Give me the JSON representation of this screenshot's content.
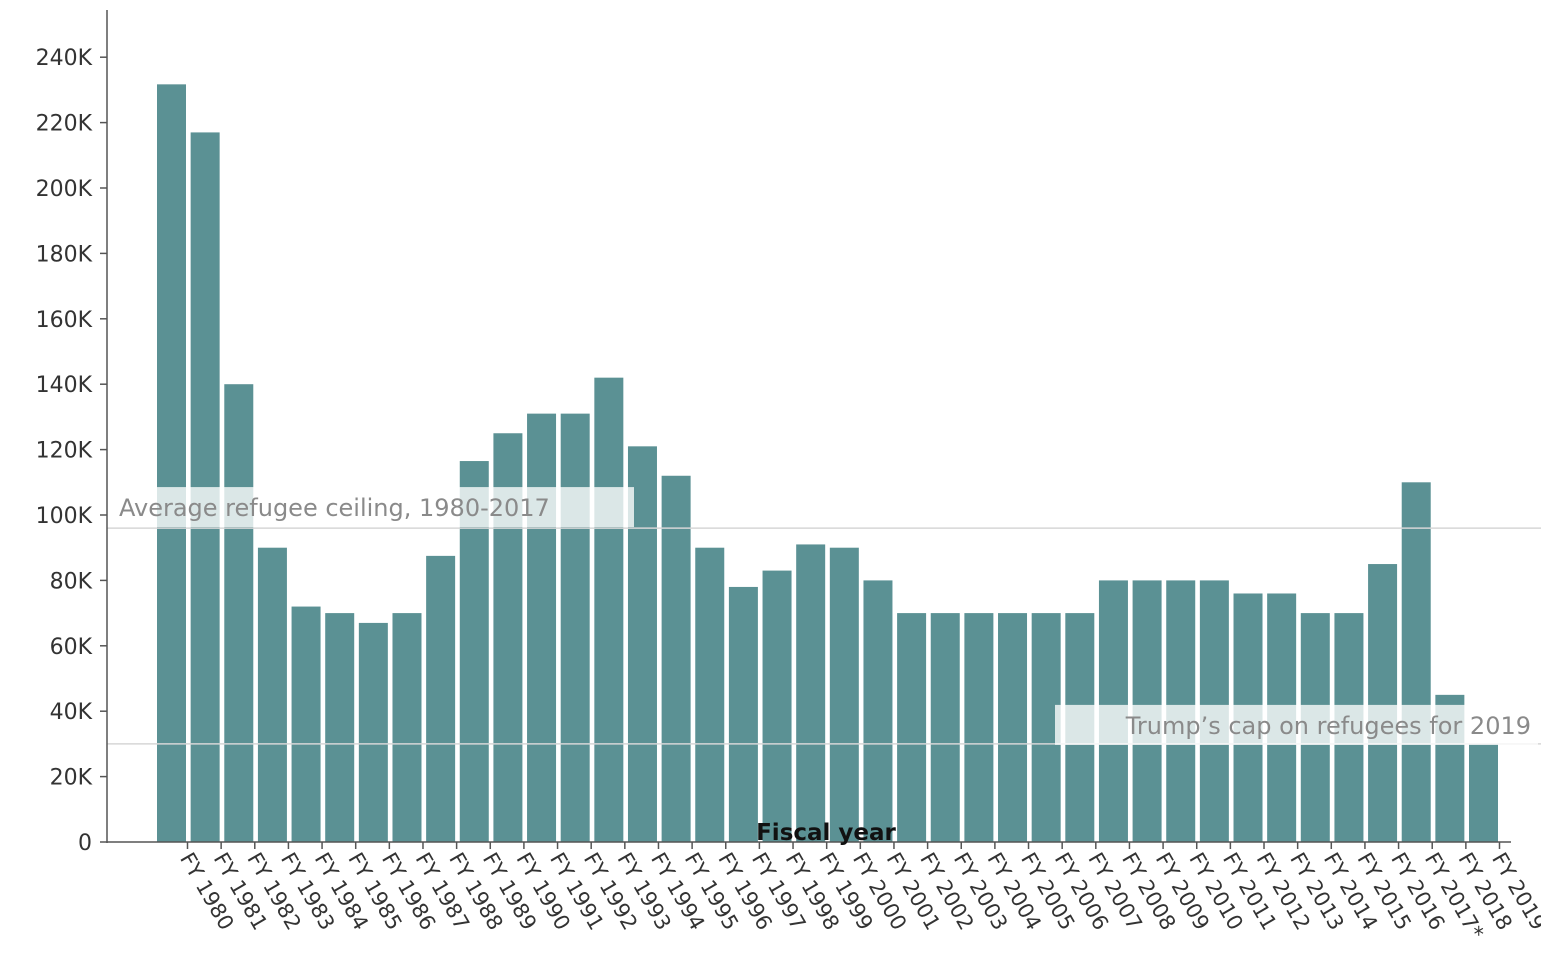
{
  "chart_data": {
    "type": "bar",
    "xlabel": "Fiscal year",
    "ylabel": "",
    "ylim": [
      0,
      255000
    ],
    "y_ticks": [
      0,
      20000,
      40000,
      60000,
      80000,
      100000,
      120000,
      140000,
      160000,
      180000,
      200000,
      220000,
      240000
    ],
    "y_tick_labels": [
      "0",
      "20K",
      "40K",
      "60K",
      "80K",
      "100K",
      "120K",
      "140K",
      "160K",
      "180K",
      "200K",
      "220K",
      "240K"
    ],
    "categories": [
      "FY 1980",
      "FY 1981",
      "FY 1982",
      "FY 1983",
      "FY 1984",
      "FY 1985",
      "FY 1986",
      "FY 1987",
      "FY 1988",
      "FY 1989",
      "FY 1990",
      "FY 1991",
      "FY 1992",
      "FY 1993",
      "FY 1994",
      "FY 1995",
      "FY 1996",
      "FY 1997",
      "FY 1998",
      "FY 1999",
      "FY 2000",
      "FY 2001",
      "FY 2002",
      "FY 2003",
      "FY 2004",
      "FY 2005",
      "FY 2006",
      "FY 2007",
      "FY 2008",
      "FY 2009",
      "FY 2010",
      "FY 2011",
      "FY 2012",
      "FY 2013",
      "FY 2014",
      "FY 2015",
      "FY 2016",
      "FY 2017*",
      "FY 2018",
      "FY 2019"
    ],
    "values": [
      231700,
      217000,
      140000,
      90000,
      72000,
      70000,
      67000,
      70000,
      87500,
      116500,
      125000,
      131000,
      131000,
      142000,
      121000,
      112000,
      90000,
      78000,
      83000,
      91000,
      90000,
      80000,
      70000,
      70000,
      70000,
      70000,
      70000,
      70000,
      80000,
      80000,
      80000,
      80000,
      76000,
      76000,
      70000,
      70000,
      85000,
      110000,
      45000,
      30000
    ],
    "bar_color": "#5b9194",
    "reference_lines": [
      {
        "label": "Average refugee ceiling, 1980-2017",
        "value": 96000
      },
      {
        "label": "Trump’s cap on refugees for 2019",
        "value": 30000
      }
    ],
    "grid": false
  }
}
